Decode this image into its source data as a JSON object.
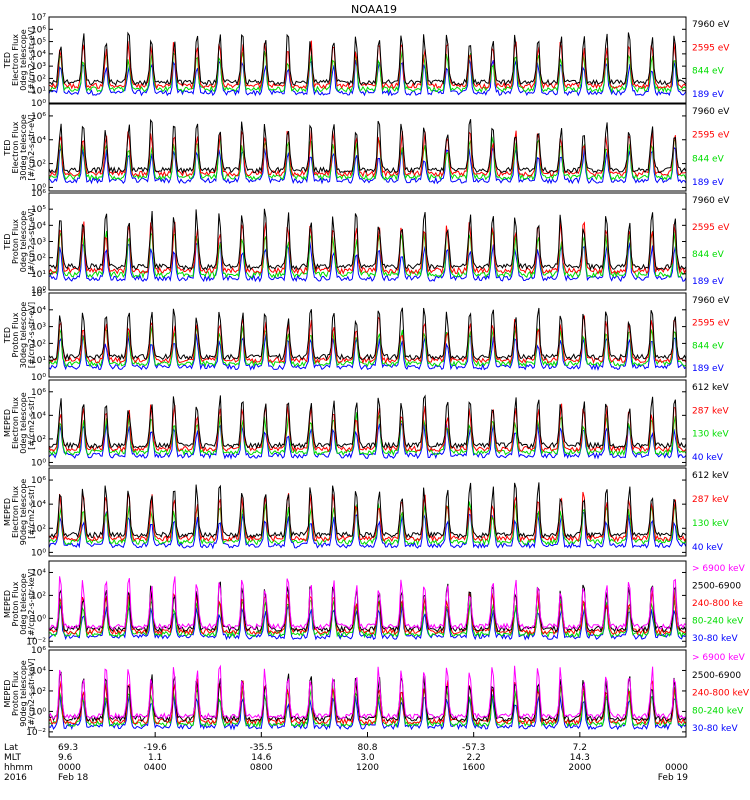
{
  "chart_data": {
    "type": "line",
    "title": "NOAA19",
    "x_time_range": [
      "2016 Feb 18 00:00",
      "2016 Feb 19 00:00"
    ],
    "grid": false,
    "panels": [
      {
        "ylabel_lines": [
          "TED",
          "Electron Flux",
          "0deg telescope",
          "[#/cm2-s-str-eV]"
        ],
        "yscale": "log",
        "ylim_exp": [
          0,
          7
        ],
        "ytick_exps": [
          0,
          1,
          2,
          3,
          4,
          5,
          6,
          7
        ],
        "ytick_labels": [
          "10⁰",
          "10¹",
          "10²",
          "10³",
          "10⁴",
          "10⁵",
          "10⁶",
          "10⁷"
        ],
        "series": [
          {
            "name": "7960 eV",
            "color": "#000000"
          },
          {
            "name": "2595 eV",
            "color": "#ff0000"
          },
          {
            "name": "844 eV",
            "color": "#00dd00"
          },
          {
            "name": "189 eV",
            "color": "#0000ff"
          }
        ]
      },
      {
        "ylabel_lines": [
          "TED",
          "Electron Flux",
          "30deg telescope",
          "[#/cm2-s-str-eV]"
        ],
        "yscale": "log",
        "ylim_exp": [
          -0.3,
          7
        ],
        "ytick_exps": [
          0,
          2,
          4,
          6
        ],
        "ytick_labels": [
          "10⁰",
          "10²",
          "10⁴",
          "10⁶"
        ],
        "series": [
          {
            "name": "7960 eV",
            "color": "#000000"
          },
          {
            "name": "2595 eV",
            "color": "#ff0000"
          },
          {
            "name": "844 eV",
            "color": "#00dd00"
          },
          {
            "name": "189 eV",
            "color": "#0000ff"
          }
        ]
      },
      {
        "ylabel_lines": [
          "TED",
          "Proton Flux",
          "0deg telescope",
          "[#/cm2-s-str-eV]"
        ],
        "yscale": "log",
        "ylim_exp": [
          0,
          6
        ],
        "ytick_exps": [
          0,
          1,
          2,
          3,
          4,
          5,
          6
        ],
        "ytick_labels": [
          "10⁰",
          "10¹",
          "10²",
          "10³",
          "10⁴",
          "10⁵",
          "10⁶"
        ],
        "series": [
          {
            "name": "7960 eV",
            "color": "#000000"
          },
          {
            "name": "2595 eV",
            "color": "#ff0000"
          },
          {
            "name": "844 eV",
            "color": "#00dd00"
          },
          {
            "name": "189 eV",
            "color": "#0000ff"
          }
        ]
      },
      {
        "ylabel_lines": [
          "TED",
          "Proton Flux",
          "30deg telescope",
          "[#/cm2-s-str-eV]"
        ],
        "yscale": "log",
        "ylim_exp": [
          0,
          5
        ],
        "ytick_exps": [
          0,
          1,
          2,
          3,
          4,
          5
        ],
        "ytick_labels": [
          "10⁰",
          "10¹",
          "10²",
          "10³",
          "10⁴",
          "10⁵"
        ],
        "series": [
          {
            "name": "7960 eV",
            "color": "#000000"
          },
          {
            "name": "2595 eV",
            "color": "#ff0000"
          },
          {
            "name": "844 eV",
            "color": "#00dd00"
          },
          {
            "name": "189 eV",
            "color": "#0000ff"
          }
        ]
      },
      {
        "ylabel_lines": [
          "MEPED",
          "Electron Flux",
          "0deg telescope",
          "[#/cm2-s-str]"
        ],
        "yscale": "log",
        "ylim_exp": [
          -0.3,
          7
        ],
        "ytick_exps": [
          0,
          2,
          4,
          6
        ],
        "ytick_labels": [
          "10⁰",
          "10²",
          "10⁴",
          "10⁶"
        ],
        "series": [
          {
            "name": "612 keV",
            "color": "#000000"
          },
          {
            "name": "287 keV",
            "color": "#ff0000"
          },
          {
            "name": "130 keV",
            "color": "#00dd00"
          },
          {
            "name": "40 keV",
            "color": "#0000ff"
          }
        ]
      },
      {
        "ylabel_lines": [
          "MEPED",
          "Electron Flux",
          "90deg telescope",
          "[#/cm2-s-str]"
        ],
        "yscale": "log",
        "ylim_exp": [
          -0.3,
          7
        ],
        "ytick_exps": [
          0,
          2,
          4,
          6
        ],
        "ytick_labels": [
          "10⁰",
          "10²",
          "10⁴",
          "10⁶"
        ],
        "series": [
          {
            "name": "612 keV",
            "color": "#000000"
          },
          {
            "name": "287 keV",
            "color": "#ff0000"
          },
          {
            "name": "130 keV",
            "color": "#00dd00"
          },
          {
            "name": "40 keV",
            "color": "#0000ff"
          }
        ]
      },
      {
        "ylabel_lines": [
          "MEPED",
          "Proton Flux",
          "0deg telescope",
          "[#/cm2-s-str-keV]"
        ],
        "yscale": "log",
        "ylim_exp": [
          -2.5,
          5
        ],
        "ytick_exps": [
          -2,
          0,
          2,
          4
        ],
        "ytick_labels": [
          "10⁻²",
          "10⁰",
          "10²",
          "10⁴"
        ],
        "series": [
          {
            "name": "> 6900 keV",
            "color": "#ff00ff"
          },
          {
            "name": "2500-6900",
            "color": "#000000"
          },
          {
            "name": "240-800 ke",
            "color": "#ff0000"
          },
          {
            "name": "80-240 keV",
            "color": "#00dd00"
          },
          {
            "name": "30-80 keV",
            "color": "#0000ff"
          }
        ]
      },
      {
        "ylabel_lines": [
          "MEPED",
          "Proton Flux",
          "90deg telescope",
          "[#/cm2-s-str-keV]"
        ],
        "yscale": "log",
        "ylim_exp": [
          -2.5,
          6
        ],
        "ytick_exps": [
          -2,
          0,
          2,
          4,
          6
        ],
        "ytick_labels": [
          "10⁻²",
          "10⁰",
          "10²",
          "10⁴",
          "10⁶"
        ],
        "series": [
          {
            "name": "> 6900 keV",
            "color": "#ff00ff"
          },
          {
            "name": "2500-6900",
            "color": "#000000"
          },
          {
            "name": "240-800 keV",
            "color": "#ff0000"
          },
          {
            "name": "80-240 keV",
            "color": "#00dd00"
          },
          {
            "name": "30-80 keV",
            "color": "#0000ff"
          }
        ]
      }
    ],
    "x_axis": {
      "row_labels": [
        "Lat",
        "MLT",
        "hhmm",
        "2016"
      ],
      "tick_hours": [
        0,
        4,
        8,
        12,
        16,
        20,
        24
      ],
      "ticks": [
        {
          "hour": 0,
          "lat": "69.3",
          "mlt": "9.6",
          "hhmm": "0000",
          "date": "Feb 18"
        },
        {
          "hour": 4,
          "lat": "-19.6",
          "mlt": "1.1",
          "hhmm": "0400",
          "date": ""
        },
        {
          "hour": 8,
          "lat": "-35.5",
          "mlt": "14.6",
          "hhmm": "0800",
          "date": ""
        },
        {
          "hour": 12,
          "lat": "80.8",
          "mlt": "3.0",
          "hhmm": "1200",
          "date": ""
        },
        {
          "hour": 16,
          "lat": "-57.3",
          "mlt": "2.2",
          "hhmm": "1600",
          "date": ""
        },
        {
          "hour": 20,
          "lat": "7.2",
          "mlt": "14.3",
          "hhmm": "2000",
          "date": ""
        },
        {
          "hour": 24,
          "lat": "",
          "mlt": "",
          "hhmm": "0000",
          "date": "Feb 19"
        }
      ]
    }
  }
}
